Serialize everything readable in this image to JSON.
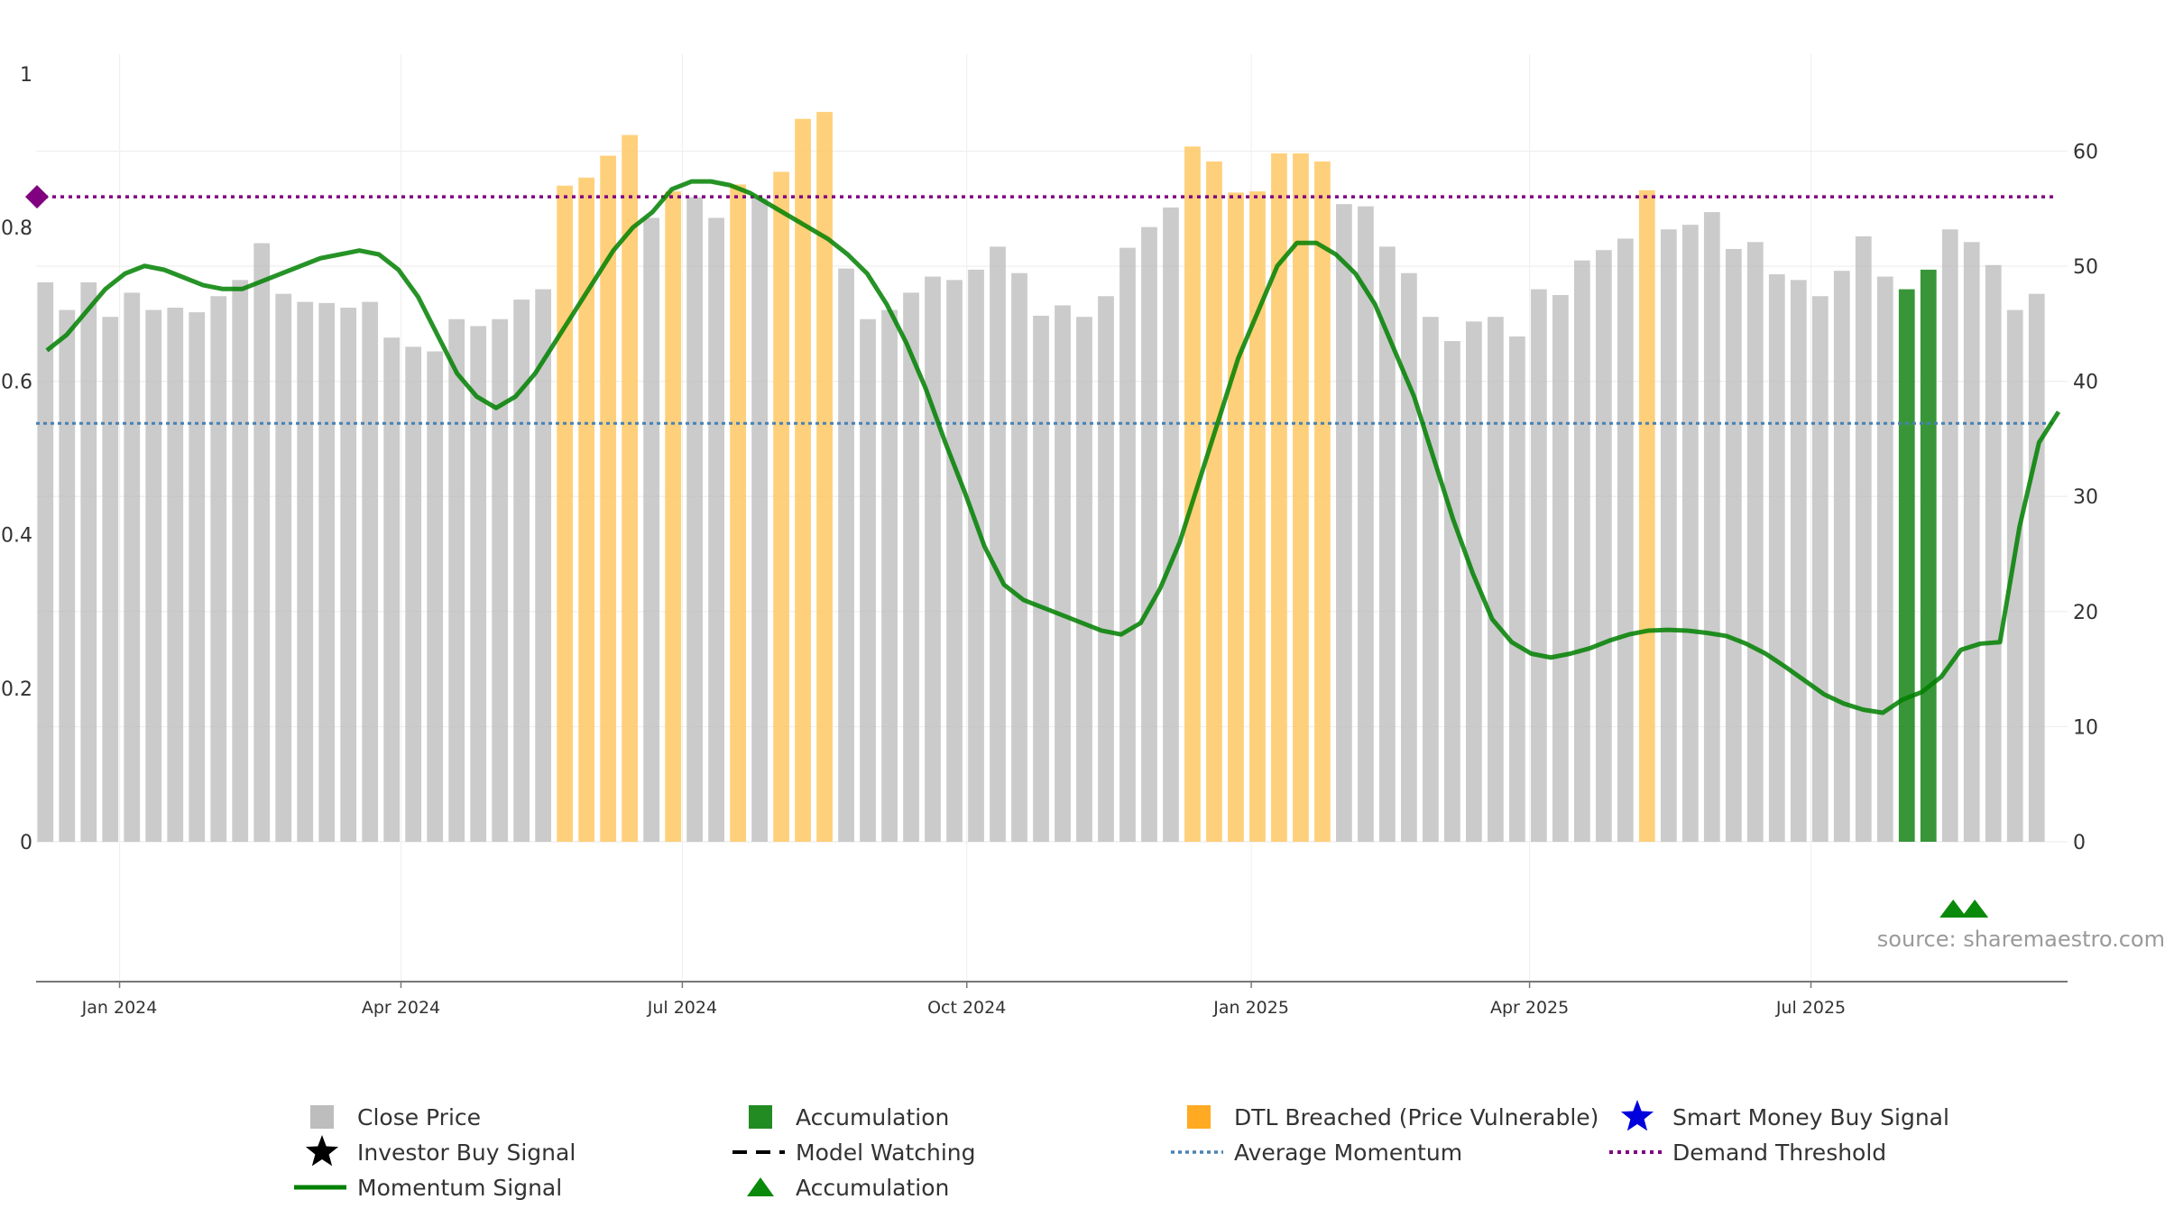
{
  "chart_data": {
    "type": "bar",
    "source_text": "source: sharemaestro.com",
    "colors": {
      "close": "#bdbdbd",
      "dtl": "#ffc864",
      "accumulation": "#228b22",
      "momentum": "#008000",
      "average": "#4682b4",
      "demand": "#800080",
      "star_investor": "#000000",
      "star_smart": "#0000dd",
      "model_watching": "#000000"
    },
    "y_left": {
      "ylim": [
        0,
        1
      ],
      "ticks": [
        0,
        0.2,
        0.4,
        0.6,
        0.8,
        1
      ],
      "tick_labels": [
        "0",
        "0.2",
        "0.4",
        "0.6",
        "0.8",
        "1"
      ]
    },
    "y_right": {
      "ylim": [
        0,
        66.7
      ],
      "ticks": [
        0,
        10,
        20,
        30,
        40,
        50,
        60
      ],
      "tick_labels": [
        "0",
        "10",
        "20",
        "30",
        "40",
        "50",
        "60"
      ]
    },
    "x_axis": {
      "start": "2023-12-05",
      "end": "2025-09-22",
      "ticks": [
        {
          "date": "2024-01-01",
          "label": "Jan 2024"
        },
        {
          "date": "2024-04-01",
          "label": "Apr 2024"
        },
        {
          "date": "2024-07-01",
          "label": "Jul 2024"
        },
        {
          "date": "2024-10-01",
          "label": "Oct 2024"
        },
        {
          "date": "2025-01-01",
          "label": "Jan 2025"
        },
        {
          "date": "2025-04-01",
          "label": "Apr 2025"
        },
        {
          "date": "2025-07-01",
          "label": "Jul 2025"
        }
      ]
    },
    "bar_start": "2023-12-08",
    "bar_step_days": 7,
    "close_values": [
      48.6,
      46.2,
      48.6,
      45.6,
      47.7,
      46.2,
      46.4,
      46.0,
      47.4,
      48.8,
      52.0,
      47.6,
      46.9,
      46.8,
      46.4,
      46.9,
      43.8,
      43.0,
      42.6,
      45.4,
      44.8,
      45.4,
      47.1,
      48.0,
      57.0,
      57.7,
      59.6,
      61.4,
      54.2,
      56.5,
      56.0,
      54.2,
      57.1,
      55.9,
      58.2,
      62.8,
      63.4,
      49.8,
      45.4,
      46.2,
      47.7,
      49.1,
      48.8,
      49.7,
      51.7,
      49.4,
      45.7,
      46.6,
      45.6,
      47.4,
      51.6,
      53.4,
      55.1,
      60.4,
      59.1,
      56.4,
      56.5,
      59.8,
      59.8,
      59.1,
      55.4,
      55.2,
      51.7,
      49.4,
      45.6,
      43.5,
      45.2,
      45.6,
      43.9,
      48.0,
      47.5,
      50.5,
      51.4,
      52.4,
      56.6,
      53.2,
      53.6,
      54.7,
      51.5,
      52.1,
      49.3,
      48.8,
      47.4,
      49.6,
      52.6,
      49.1,
      48.0,
      49.7,
      53.2,
      52.1,
      50.1,
      46.2,
      47.6
    ],
    "bar_categories": [
      "close",
      "close",
      "close",
      "close",
      "close",
      "close",
      "close",
      "close",
      "close",
      "close",
      "close",
      "close",
      "close",
      "close",
      "close",
      "close",
      "close",
      "close",
      "close",
      "close",
      "close",
      "close",
      "close",
      "close",
      "dtl",
      "dtl",
      "dtl",
      "dtl",
      "close",
      "dtl",
      "close",
      "close",
      "dtl",
      "close",
      "dtl",
      "dtl",
      "dtl",
      "close",
      "close",
      "close",
      "close",
      "close",
      "close",
      "close",
      "close",
      "close",
      "close",
      "close",
      "close",
      "close",
      "close",
      "close",
      "close",
      "dtl",
      "dtl",
      "dtl",
      "dtl",
      "dtl",
      "dtl",
      "dtl",
      "close",
      "close",
      "close",
      "close",
      "close",
      "close",
      "close",
      "close",
      "close",
      "close",
      "close",
      "close",
      "close",
      "close",
      "dtl",
      "close",
      "close",
      "close",
      "close",
      "close",
      "close",
      "close",
      "close",
      "close",
      "close",
      "close",
      "acc",
      "acc",
      "close",
      "close",
      "close",
      "close",
      "close"
    ],
    "momentum_values": [
      0.64,
      0.66,
      0.69,
      0.72,
      0.74,
      0.75,
      0.745,
      0.735,
      0.725,
      0.72,
      0.72,
      0.73,
      0.74,
      0.75,
      0.76,
      0.765,
      0.77,
      0.765,
      0.745,
      0.71,
      0.66,
      0.61,
      0.58,
      0.565,
      0.58,
      0.61,
      0.65,
      0.69,
      0.73,
      0.77,
      0.8,
      0.82,
      0.85,
      0.86,
      0.86,
      0.855,
      0.845,
      0.83,
      0.815,
      0.8,
      0.785,
      0.765,
      0.74,
      0.7,
      0.65,
      0.59,
      0.52,
      0.455,
      0.385,
      0.335,
      0.315,
      0.305,
      0.295,
      0.285,
      0.275,
      0.27,
      0.285,
      0.33,
      0.39,
      0.47,
      0.55,
      0.63,
      0.69,
      0.75,
      0.78,
      0.78,
      0.765,
      0.74,
      0.7,
      0.64,
      0.58,
      0.5,
      0.42,
      0.35,
      0.29,
      0.26,
      0.245,
      0.24,
      0.245,
      0.252,
      0.262,
      0.27,
      0.275,
      0.276,
      0.275,
      0.272,
      0.268,
      0.258,
      0.245,
      0.228,
      0.21,
      0.192,
      0.18,
      0.172,
      0.168,
      0.185,
      0.195,
      0.215,
      0.25,
      0.258,
      0.26,
      0.41,
      0.52,
      0.56
    ],
    "average_momentum": 0.545,
    "demand_threshold": 0.84,
    "accumulation_markers": [
      "2025-08-16",
      "2025-08-23"
    ]
  },
  "legend": {
    "items": [
      {
        "key": "close",
        "label": "Close Price"
      },
      {
        "key": "investor",
        "label": "Investor Buy Signal"
      },
      {
        "key": "momentum",
        "label": "Momentum Signal"
      },
      {
        "key": "accumulation_bar",
        "label": "Accumulation"
      },
      {
        "key": "model",
        "label": "Model Watching"
      },
      {
        "key": "accumulation_tri",
        "label": "Accumulation"
      },
      {
        "key": "dtl",
        "label": "DTL Breached (Price Vulnerable)"
      },
      {
        "key": "average",
        "label": "Average Momentum"
      },
      {
        "key": "smart",
        "label": "Smart Money Buy Signal"
      },
      {
        "key": "demand",
        "label": "Demand Threshold"
      }
    ]
  }
}
